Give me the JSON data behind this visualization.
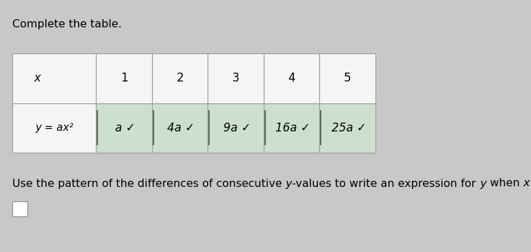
{
  "title": "Complete the table.",
  "subtitle_parts": [
    {
      "text": "Use the pattern of the differences of consecutive ",
      "style": "normal"
    },
    {
      "text": "y",
      "style": "italic"
    },
    {
      "text": "-values to write an expression for ",
      "style": "normal"
    },
    {
      "text": "y",
      "style": "italic"
    },
    {
      "text": " when ",
      "style": "normal"
    },
    {
      "text": "x",
      "style": "italic"
    },
    {
      "text": " =",
      "style": "normal"
    }
  ],
  "bg_color": "#c8c8c8",
  "table_bg_light": "#e8e8e8",
  "table_bg_white": "#f5f5f5",
  "cell_highlight_color": "#cde0cd",
  "border_color": "#999999",
  "row1_label": "x",
  "row2_label": "y = ax²",
  "col_headers": [
    "1",
    "2",
    "3",
    "4",
    "5"
  ],
  "col_values": [
    "a",
    "4a",
    "9a",
    "16a",
    "25a"
  ],
  "checkmark": "✓",
  "title_fontsize": 11.5,
  "subtitle_fontsize": 11.5,
  "cell_fontsize": 12
}
